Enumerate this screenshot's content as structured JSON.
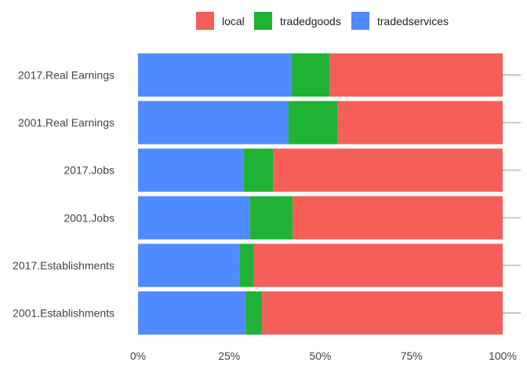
{
  "chart_data": {
    "type": "bar",
    "orientation": "horizontal",
    "stacked": "percent",
    "categories": [
      "2017.Real Earnings",
      "2001.Real Earnings",
      "2017.Jobs",
      "2001.Jobs",
      "2017.Establishments",
      "2001.Establishments"
    ],
    "series": [
      {
        "name": "tradedservices",
        "color": "#4f8bff",
        "values": [
          42,
          41.2,
          29,
          30.7,
          27.8,
          29.5
        ]
      },
      {
        "name": "tradedgoods",
        "color": "#1fb234",
        "values": [
          10.5,
          13.5,
          8,
          11.7,
          4,
          4.5
        ]
      },
      {
        "name": "local",
        "color": "#f45f5a",
        "values": [
          47.5,
          45.3,
          63,
          57.6,
          68.2,
          66
        ]
      }
    ],
    "legend_order": [
      "local",
      "tradedgoods",
      "tradedservices"
    ],
    "legend_position": "top",
    "x_ticks": [
      "0%",
      "25%",
      "50%",
      "75%",
      "100%"
    ],
    "xlim": [
      0,
      100
    ],
    "title": "",
    "xlabel": "",
    "ylabel": ""
  }
}
